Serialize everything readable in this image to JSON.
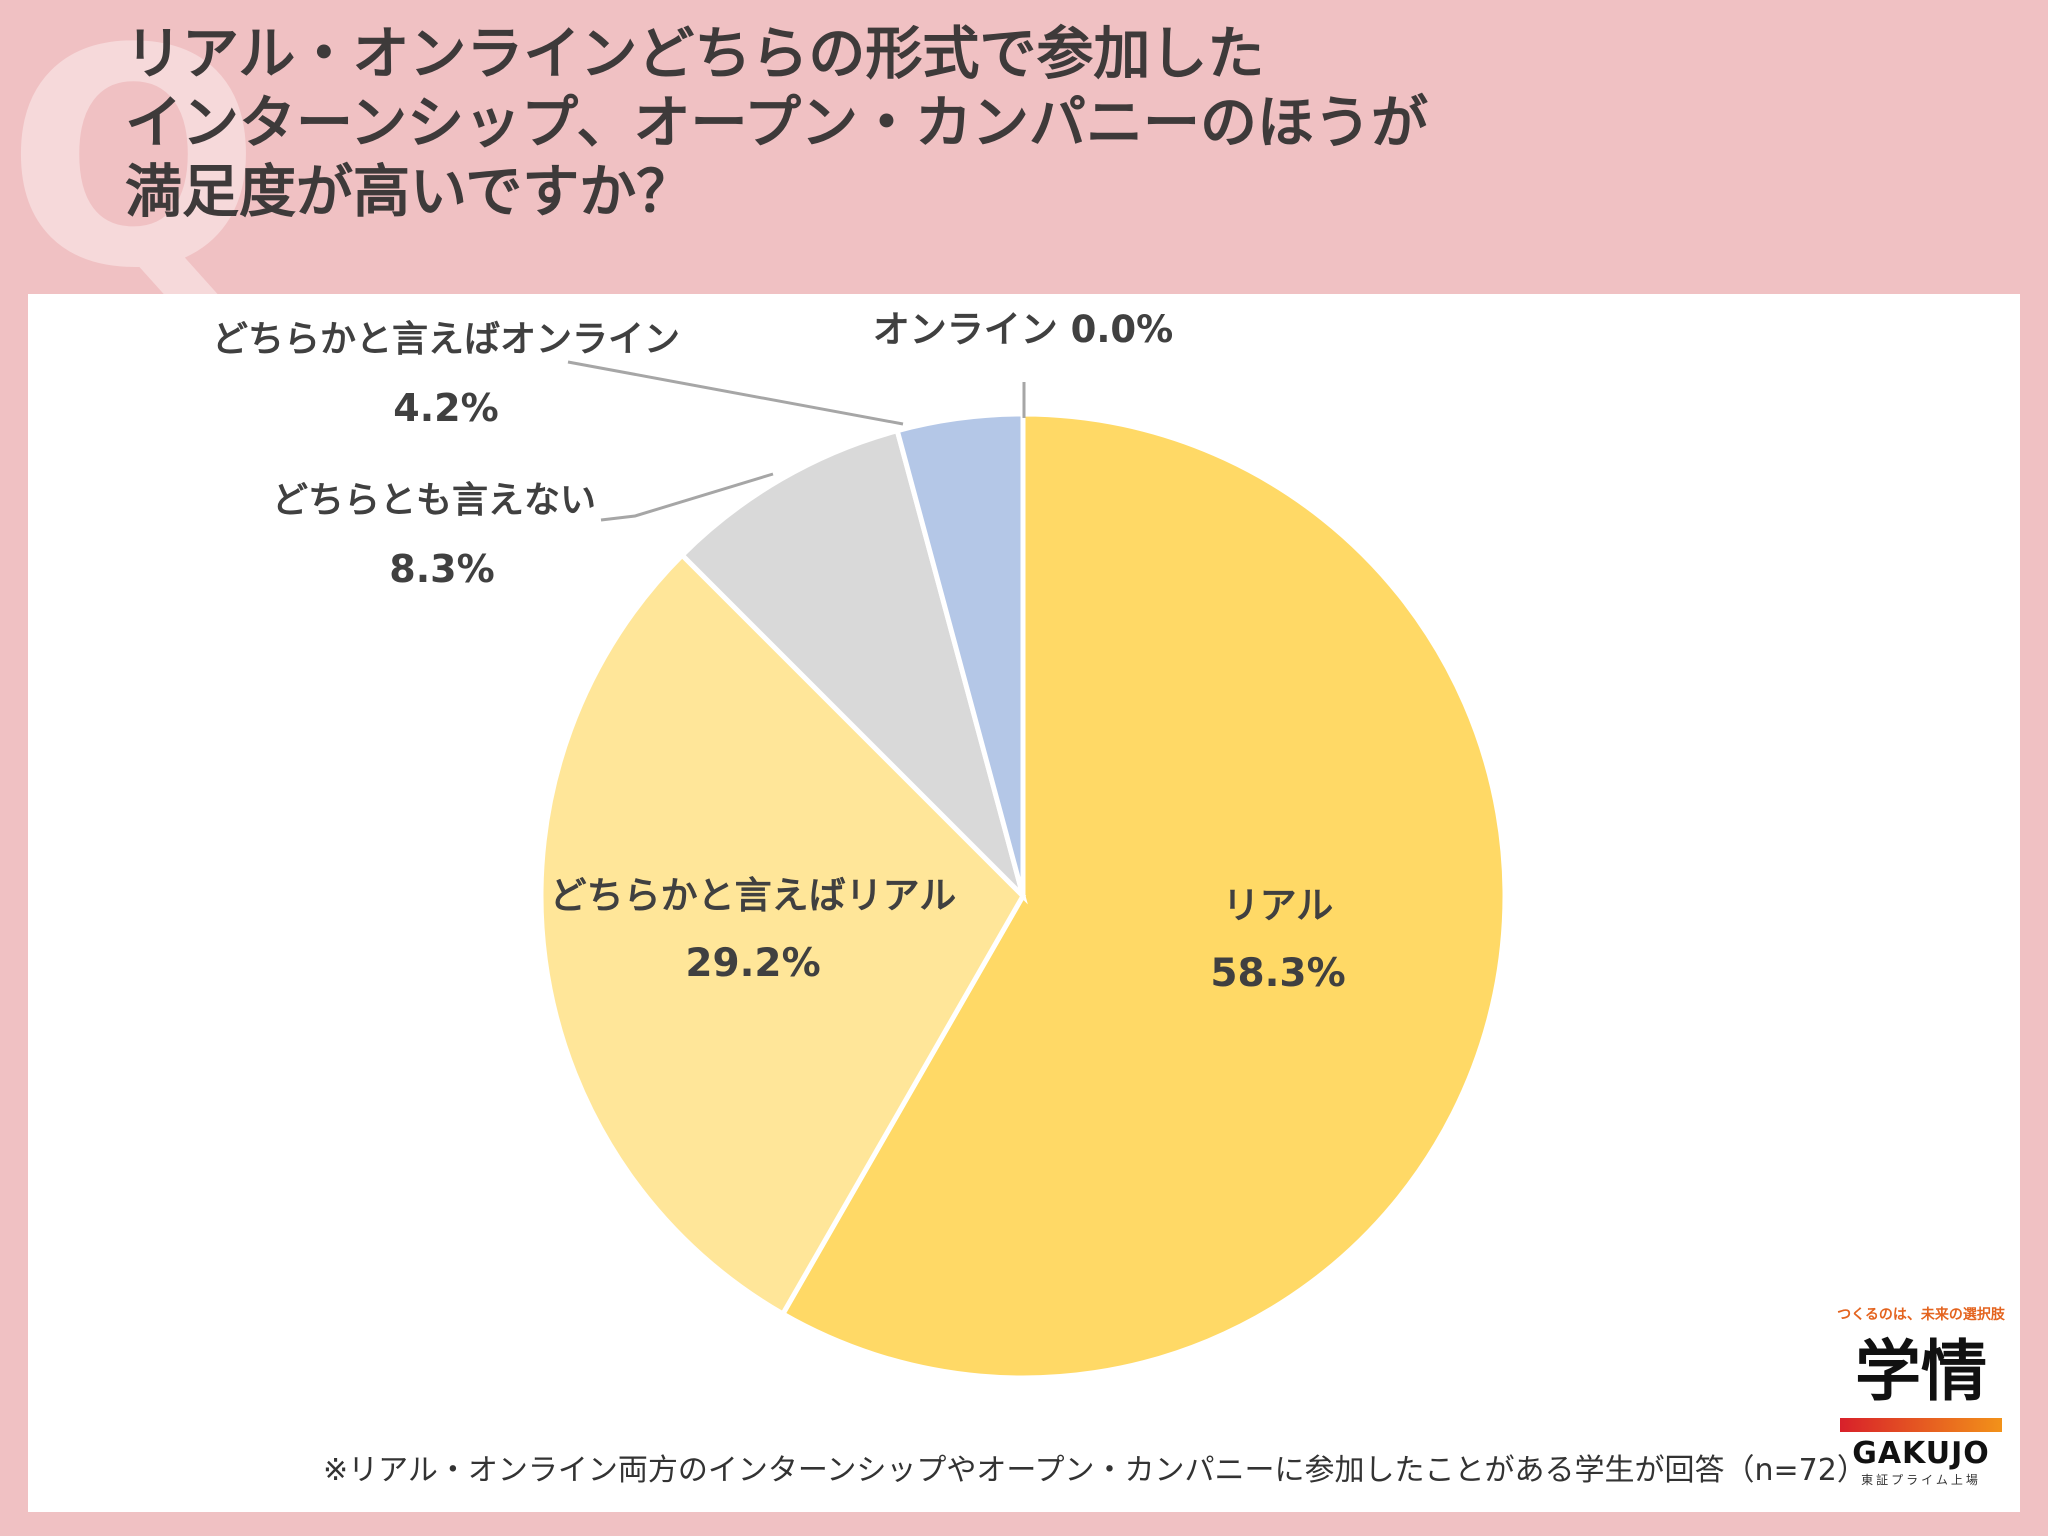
{
  "title_lines": [
    "リアル・オンラインどちらの形式で参加した",
    "インターンシップ、オープン・カンパニーのほうが",
    "満足度が高いですか？"
  ],
  "deco_letter": "Q",
  "chart_data": {
    "type": "pie",
    "start": "12 o'clock, clockwise",
    "slices": [
      {
        "label": "リアル",
        "value": 58.3,
        "display": "58.3%",
        "color": "#ffd966"
      },
      {
        "label": "どちらかと言えばリアル",
        "value": 29.2,
        "display": "29.2%",
        "color": "#ffe699"
      },
      {
        "label": "どちらとも言えない",
        "value": 8.3,
        "display": "8.3%",
        "color": "#d9d9d9"
      },
      {
        "label": "どちらかと言えばオンライン",
        "value": 4.2,
        "display": "4.2%",
        "color": "#b4c7e7"
      },
      {
        "label": "オンライン",
        "value": 0.0,
        "display": "0.0%",
        "color": "#8faadc"
      }
    ]
  },
  "labels": {
    "online": "オンライン 0.0%"
  },
  "footnote": "※リアル・オンライン両方のインターンシップやオープン・カンパニーに参加したことがある学生が回答（n=72）",
  "logo": {
    "tagline": "つくるのは、未来の選択肢",
    "kanji": "学情",
    "latin": "GAKUJO",
    "sub": "東証プライム上場"
  }
}
